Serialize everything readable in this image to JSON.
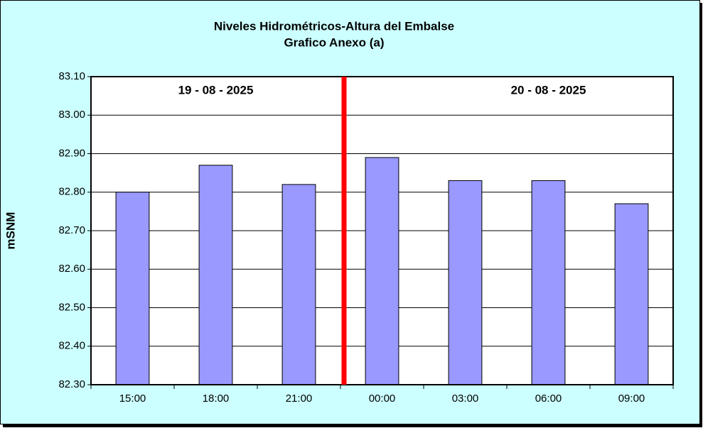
{
  "chart_data": {
    "type": "bar",
    "title": "Niveles Hidrométricos-Altura del Embalse",
    "subtitle": "Grafico Anexo (a)",
    "y_label": "mSNM",
    "annotations": [
      "19 - 08 - 2025",
      "20 - 08 - 2025"
    ],
    "categories": [
      "15:00",
      "18:00",
      "21:00",
      "00:00",
      "03:00",
      "06:00",
      "09:00"
    ],
    "values": [
      82.8,
      82.87,
      82.82,
      82.89,
      82.83,
      82.83,
      82.77
    ],
    "color": "#9999ff",
    "ylim": [
      82.3,
      83.1
    ],
    "yticks": [
      {
        "value": 82.3,
        "label": "82.30"
      },
      {
        "value": 82.4,
        "label": "82.40"
      },
      {
        "value": 82.5,
        "label": "82.50"
      },
      {
        "value": 82.6,
        "label": "82.60"
      },
      {
        "value": 82.7,
        "label": "82.70"
      },
      {
        "value": 82.8,
        "label": "82.80"
      },
      {
        "value": 82.9,
        "label": "82.90"
      },
      {
        "value": 83.0,
        "label": "83.00"
      },
      {
        "value": 83.1,
        "label": "83.10"
      }
    ],
    "grid": true
  }
}
